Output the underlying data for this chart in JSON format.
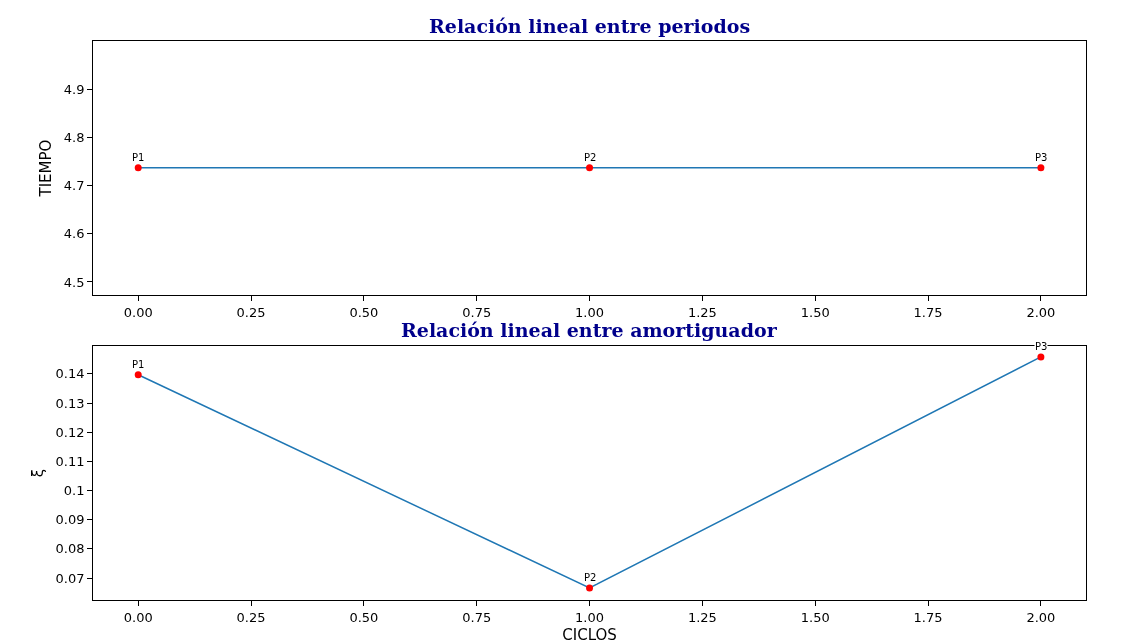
{
  "chart_data": [
    {
      "type": "line",
      "title": "Relación lineal entre periodos",
      "ylabel": "TIEMPO",
      "x": [
        0,
        1,
        2
      ],
      "series": [
        {
          "color": "#1f77b4",
          "colors": [
            "#ff0000",
            "#ff0000",
            "#ff0000"
          ],
          "values": [
            4.737,
            4.737,
            4.737
          ]
        }
      ],
      "annotations": [
        {
          "text": "P1",
          "x": 0,
          "y": 4.737
        },
        {
          "text": "P2",
          "x": 1,
          "y": 4.737
        },
        {
          "text": "P3",
          "x": 2,
          "y": 4.737
        }
      ],
      "xlim": [
        -0.1,
        2.1
      ],
      "xticks": [
        {
          "value": 0,
          "label": "0.00"
        },
        {
          "value": 0.25,
          "label": "0.25"
        },
        {
          "value": 0.5,
          "label": "0.50"
        },
        {
          "value": 0.75,
          "label": "0.75"
        },
        {
          "value": 1,
          "label": "1.00"
        },
        {
          "value": 1.25,
          "label": "1.25"
        },
        {
          "value": 1.5,
          "label": "1.50"
        },
        {
          "value": 1.75,
          "label": "1.75"
        },
        {
          "value": 2,
          "label": "2.00"
        }
      ],
      "ylim": [
        4.473,
        5.0
      ],
      "yticks": [
        4.5,
        4.6,
        4.7,
        4.8,
        4.9
      ],
      "marker": "circle"
    },
    {
      "type": "line",
      "title": "Relación lineal entre amortiguador",
      "xlabel": "CICLOS",
      "ylabel": "ξ",
      "x": [
        0,
        1,
        2
      ],
      "series": [
        {
          "color": "#1f77b4",
          "colors": [
            "#ff0000",
            "#ff0000",
            "#ff0000"
          ],
          "values": [
            0.1397,
            0.0666,
            0.1458
          ]
        }
      ],
      "annotations": [
        {
          "text": "P1",
          "x": 0,
          "y": 0.1397
        },
        {
          "text": "P2",
          "x": 1,
          "y": 0.0666
        },
        {
          "text": "P3",
          "x": 2,
          "y": 0.1458
        }
      ],
      "xlim": [
        -0.1,
        2.1
      ],
      "xticks": [
        {
          "value": 0,
          "label": "0.00"
        },
        {
          "value": 0.25,
          "label": "0.25"
        },
        {
          "value": 0.5,
          "label": "0.50"
        },
        {
          "value": 0.75,
          "label": "0.75"
        },
        {
          "value": 1,
          "label": "1.00"
        },
        {
          "value": 1.25,
          "label": "1.25"
        },
        {
          "value": 1.5,
          "label": "1.50"
        },
        {
          "value": 1.75,
          "label": "1.75"
        },
        {
          "value": 2,
          "label": "2.00"
        }
      ],
      "ylim": [
        0.0624,
        0.1496
      ],
      "yticks": [
        0.07,
        0.08,
        0.09,
        0.1,
        0.11,
        0.12,
        0.13,
        0.14
      ],
      "marker": "circle"
    }
  ]
}
